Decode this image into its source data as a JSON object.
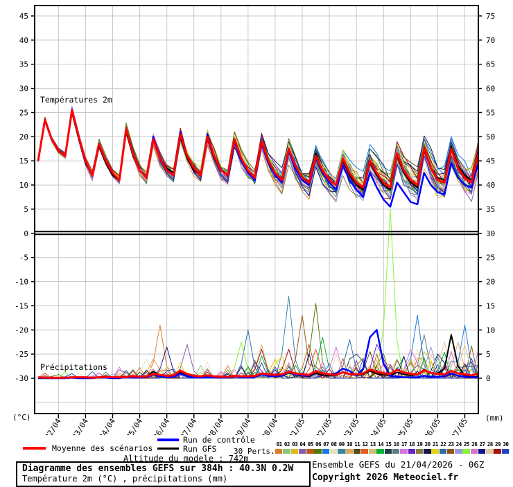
{
  "chart": {
    "temp_label": "Températures 2m",
    "precip_label": "Précipitations",
    "unit_left": "(°C)",
    "unit_right": "(mm)",
    "left_ticks": [
      45,
      40,
      35,
      30,
      25,
      20,
      15,
      10,
      5,
      0,
      -5,
      -10,
      -15,
      -20,
      -25,
      -30
    ],
    "right_ticks": [
      75,
      70,
      65,
      60,
      55,
      50,
      45,
      40,
      35,
      30,
      25,
      20,
      15,
      10,
      5,
      0
    ],
    "x_labels": [
      "22/04",
      "23/04",
      "24/04",
      "25/04",
      "26/04",
      "27/04",
      "28/04",
      "29/04",
      "30/04",
      "01/05",
      "02/05",
      "03/05",
      "04/05",
      "05/05",
      "06/05",
      "07/05"
    ]
  },
  "chart_data": {
    "type": "line",
    "title": "Diagramme des ensembles GEFS sur 384h : 40.3N 0.2W",
    "x_start": "21/04 06h",
    "x_step_hours": 6,
    "n_points": 66,
    "temp_axis_range": [
      -30,
      45
    ],
    "precip_axis_range": [
      0,
      75
    ],
    "grid": true,
    "series": {
      "mean_temp": [
        15,
        23.5,
        19.5,
        17,
        16,
        25.5,
        20,
        15,
        12,
        18.5,
        15,
        12.5,
        11,
        21.5,
        16.5,
        13,
        11.5,
        19.5,
        15.5,
        13,
        12,
        20.5,
        16,
        13.5,
        12,
        20,
        16,
        13,
        12,
        19.5,
        15.5,
        13,
        11.5,
        19,
        15,
        12.5,
        11,
        17.5,
        14,
        11.5,
        10.5,
        16,
        13,
        11,
        10,
        15.5,
        12.5,
        10.5,
        9.5,
        15,
        12.5,
        10.5,
        9.5,
        16.5,
        13,
        11,
        10,
        17.5,
        13.5,
        11,
        10.5,
        17.5,
        13.5,
        11.5,
        10.5,
        16.5
      ],
      "control_temp": [
        15,
        23.5,
        19.5,
        17,
        16,
        25.5,
        20,
        15,
        12,
        18.5,
        15,
        12.5,
        11,
        21.5,
        16.5,
        13,
        11.5,
        20,
        15.5,
        13,
        12,
        21,
        16,
        13.5,
        12,
        20.5,
        16,
        13,
        12,
        19,
        15,
        12.5,
        11,
        18.5,
        14.5,
        12,
        10.5,
        17,
        13.5,
        11,
        10,
        15.5,
        12.5,
        10.5,
        9,
        14,
        11,
        9,
        7.5,
        12.5,
        9.5,
        7,
        5.5,
        10.5,
        8.5,
        6.5,
        6,
        12.5,
        10,
        8.5,
        8,
        14.5,
        11.5,
        10,
        9.5,
        14.5
      ],
      "gfs_temp": [
        15,
        23.5,
        19.5,
        17,
        16,
        25,
        19.5,
        14.5,
        12,
        18,
        14.5,
        12,
        11,
        21,
        16,
        13,
        11.5,
        20,
        15.5,
        13.5,
        12.5,
        20,
        15.5,
        13,
        12,
        19.5,
        15.5,
        13,
        12,
        19,
        15,
        12.5,
        11,
        18.5,
        14.5,
        12,
        10.5,
        17,
        13.5,
        11.5,
        10,
        16.5,
        13,
        11,
        10,
        15,
        12,
        10,
        9,
        14.5,
        12,
        10,
        9,
        16,
        12.5,
        10.5,
        9.5,
        17,
        13.5,
        11.5,
        11,
        18,
        14,
        12,
        11,
        17
      ],
      "mean_precip": [
        0.2,
        0.1,
        0.1,
        0.1,
        0.1,
        0.2,
        0.2,
        0.2,
        0.1,
        0.2,
        0.3,
        0.2,
        0.2,
        0.3,
        0.4,
        0.3,
        0.4,
        0.9,
        0.7,
        0.5,
        0.6,
        1.6,
        0.9,
        0.5,
        0.4,
        0.6,
        0.4,
        0.3,
        0.3,
        0.5,
        0.4,
        0.4,
        0.5,
        1.0,
        0.8,
        0.7,
        0.8,
        1.3,
        1.0,
        0.8,
        0.7,
        1.5,
        1.0,
        0.8,
        0.7,
        1.2,
        0.9,
        0.8,
        1.0,
        1.8,
        1.3,
        1.0,
        0.9,
        1.7,
        1.2,
        0.9,
        0.8,
        1.6,
        1.1,
        0.9,
        0.8,
        1.5,
        1.0,
        0.8,
        0.6,
        0.9
      ],
      "control_precip": [
        0,
        0,
        0,
        0,
        0,
        0.1,
        0,
        0,
        0,
        0.2,
        0.1,
        0,
        0,
        0.3,
        0.1,
        0.1,
        0.2,
        0.8,
        0.3,
        0.2,
        0.3,
        0.9,
        0.4,
        0.2,
        0.1,
        0.3,
        0.2,
        0.1,
        0.1,
        0.4,
        0.2,
        0.2,
        0.3,
        0.8,
        0.5,
        0.4,
        0.5,
        1.2,
        0.8,
        0.6,
        0.5,
        1.5,
        1.0,
        0.8,
        1.0,
        2.0,
        1.5,
        0.5,
        2.0,
        8.5,
        10.0,
        3.0,
        0.5,
        0.3,
        0.2,
        0.2,
        0.2,
        0.5,
        0.3,
        0.3,
        0.4,
        1.0,
        0.5,
        0.3,
        0.2,
        0.2
      ],
      "gfs_precip": [
        0,
        0,
        0,
        0,
        0,
        0.1,
        0,
        0,
        0,
        0.1,
        0.1,
        0,
        0.1,
        0.3,
        0.1,
        0.2,
        0.4,
        1.4,
        0.6,
        0.3,
        0.4,
        1.2,
        0.5,
        0.2,
        0.1,
        0.3,
        0.2,
        0.1,
        0.2,
        0.4,
        0.2,
        0.3,
        0.3,
        0.9,
        0.5,
        0.4,
        0.5,
        1.1,
        0.7,
        0.5,
        0.4,
        1.0,
        0.7,
        0.5,
        0.6,
        1.3,
        0.8,
        0.6,
        0.8,
        1.5,
        0.9,
        0.7,
        0.6,
        1.2,
        0.8,
        0.6,
        0.7,
        1.8,
        1.0,
        1.0,
        2.0,
        9.0,
        2.5,
        0.5,
        0.3,
        0.3
      ]
    },
    "members": {
      "count": 30,
      "colors": [
        "#e07b2a",
        "#8bc87b",
        "#ddb91e",
        "#8a5bb0",
        "#bd5b16",
        "#567711",
        "#1779e4",
        "#e6e0b8",
        "#3889a8",
        "#e0a960",
        "#514a1a",
        "#e55a20",
        "#d0c178",
        "#00b43d",
        "#1c4147",
        "#617d87",
        "#d675df",
        "#6323c7",
        "#8a7d3d",
        "#16164f",
        "#e8d216",
        "#2c6ca3",
        "#935616",
        "#9a9ae0",
        "#8af13c",
        "#d675cb",
        "#111587",
        "#dccba3",
        "#9e1313",
        "#1f46c4"
      ],
      "temp_spread_start": 0.45,
      "temp_spread_end": 2.6,
      "precip_events": [
        [
          1,
          18,
          11
        ],
        [
          10,
          17,
          4
        ],
        [
          27,
          19,
          6.5
        ],
        [
          8,
          16,
          4
        ],
        [
          4,
          22,
          7
        ],
        [
          22,
          31,
          10
        ],
        [
          25,
          30,
          7.5
        ],
        [
          9,
          37,
          17
        ],
        [
          6,
          41,
          15.5
        ],
        [
          23,
          39,
          13
        ],
        [
          5,
          40,
          7
        ],
        [
          14,
          42,
          8.5
        ],
        [
          29,
          33,
          6
        ],
        [
          13,
          33,
          7
        ],
        [
          12,
          41,
          6
        ],
        [
          17,
          44,
          6.5
        ],
        [
          15,
          47,
          5
        ],
        [
          22,
          46,
          8
        ],
        [
          11,
          49,
          5.5
        ],
        [
          18,
          50,
          7
        ],
        [
          2,
          53,
          4
        ],
        [
          25,
          52,
          35
        ],
        [
          26,
          55,
          6
        ],
        [
          7,
          56,
          13
        ],
        [
          3,
          57,
          5.5
        ],
        [
          24,
          58,
          6.5
        ],
        [
          20,
          59,
          5
        ],
        [
          28,
          60,
          7.5
        ],
        [
          10,
          62,
          7.5
        ],
        [
          21,
          36,
          4.5
        ],
        [
          3,
          35,
          4
        ],
        [
          7,
          63,
          11
        ],
        [
          28,
          63,
          7
        ],
        [
          29,
          37,
          6
        ],
        [
          16,
          57,
          9
        ]
      ]
    },
    "colors": {
      "mean": "#ff0000",
      "control": "#0000ff",
      "gfs": "#000000",
      "grid": "#c8c8c8",
      "axis": "#000000",
      "background": "#ffffff"
    }
  },
  "legend": {
    "mean": "Moyenne des scénarios",
    "control": "Run de contrôle",
    "gfs": "Run GFS",
    "perts_label": "30 Perts.",
    "altitude": "Altitude du modele : 742m"
  },
  "footer": {
    "title": "Diagramme des ensembles GEFS sur 384h : 40.3N 0.2W",
    "subtitle": "Température 2m (°C) , précipitations (mm)",
    "run_info": "Ensemble GEFS du 21/04/2026 - 06Z",
    "copyright": "Copyright 2026 Meteociel.fr"
  }
}
